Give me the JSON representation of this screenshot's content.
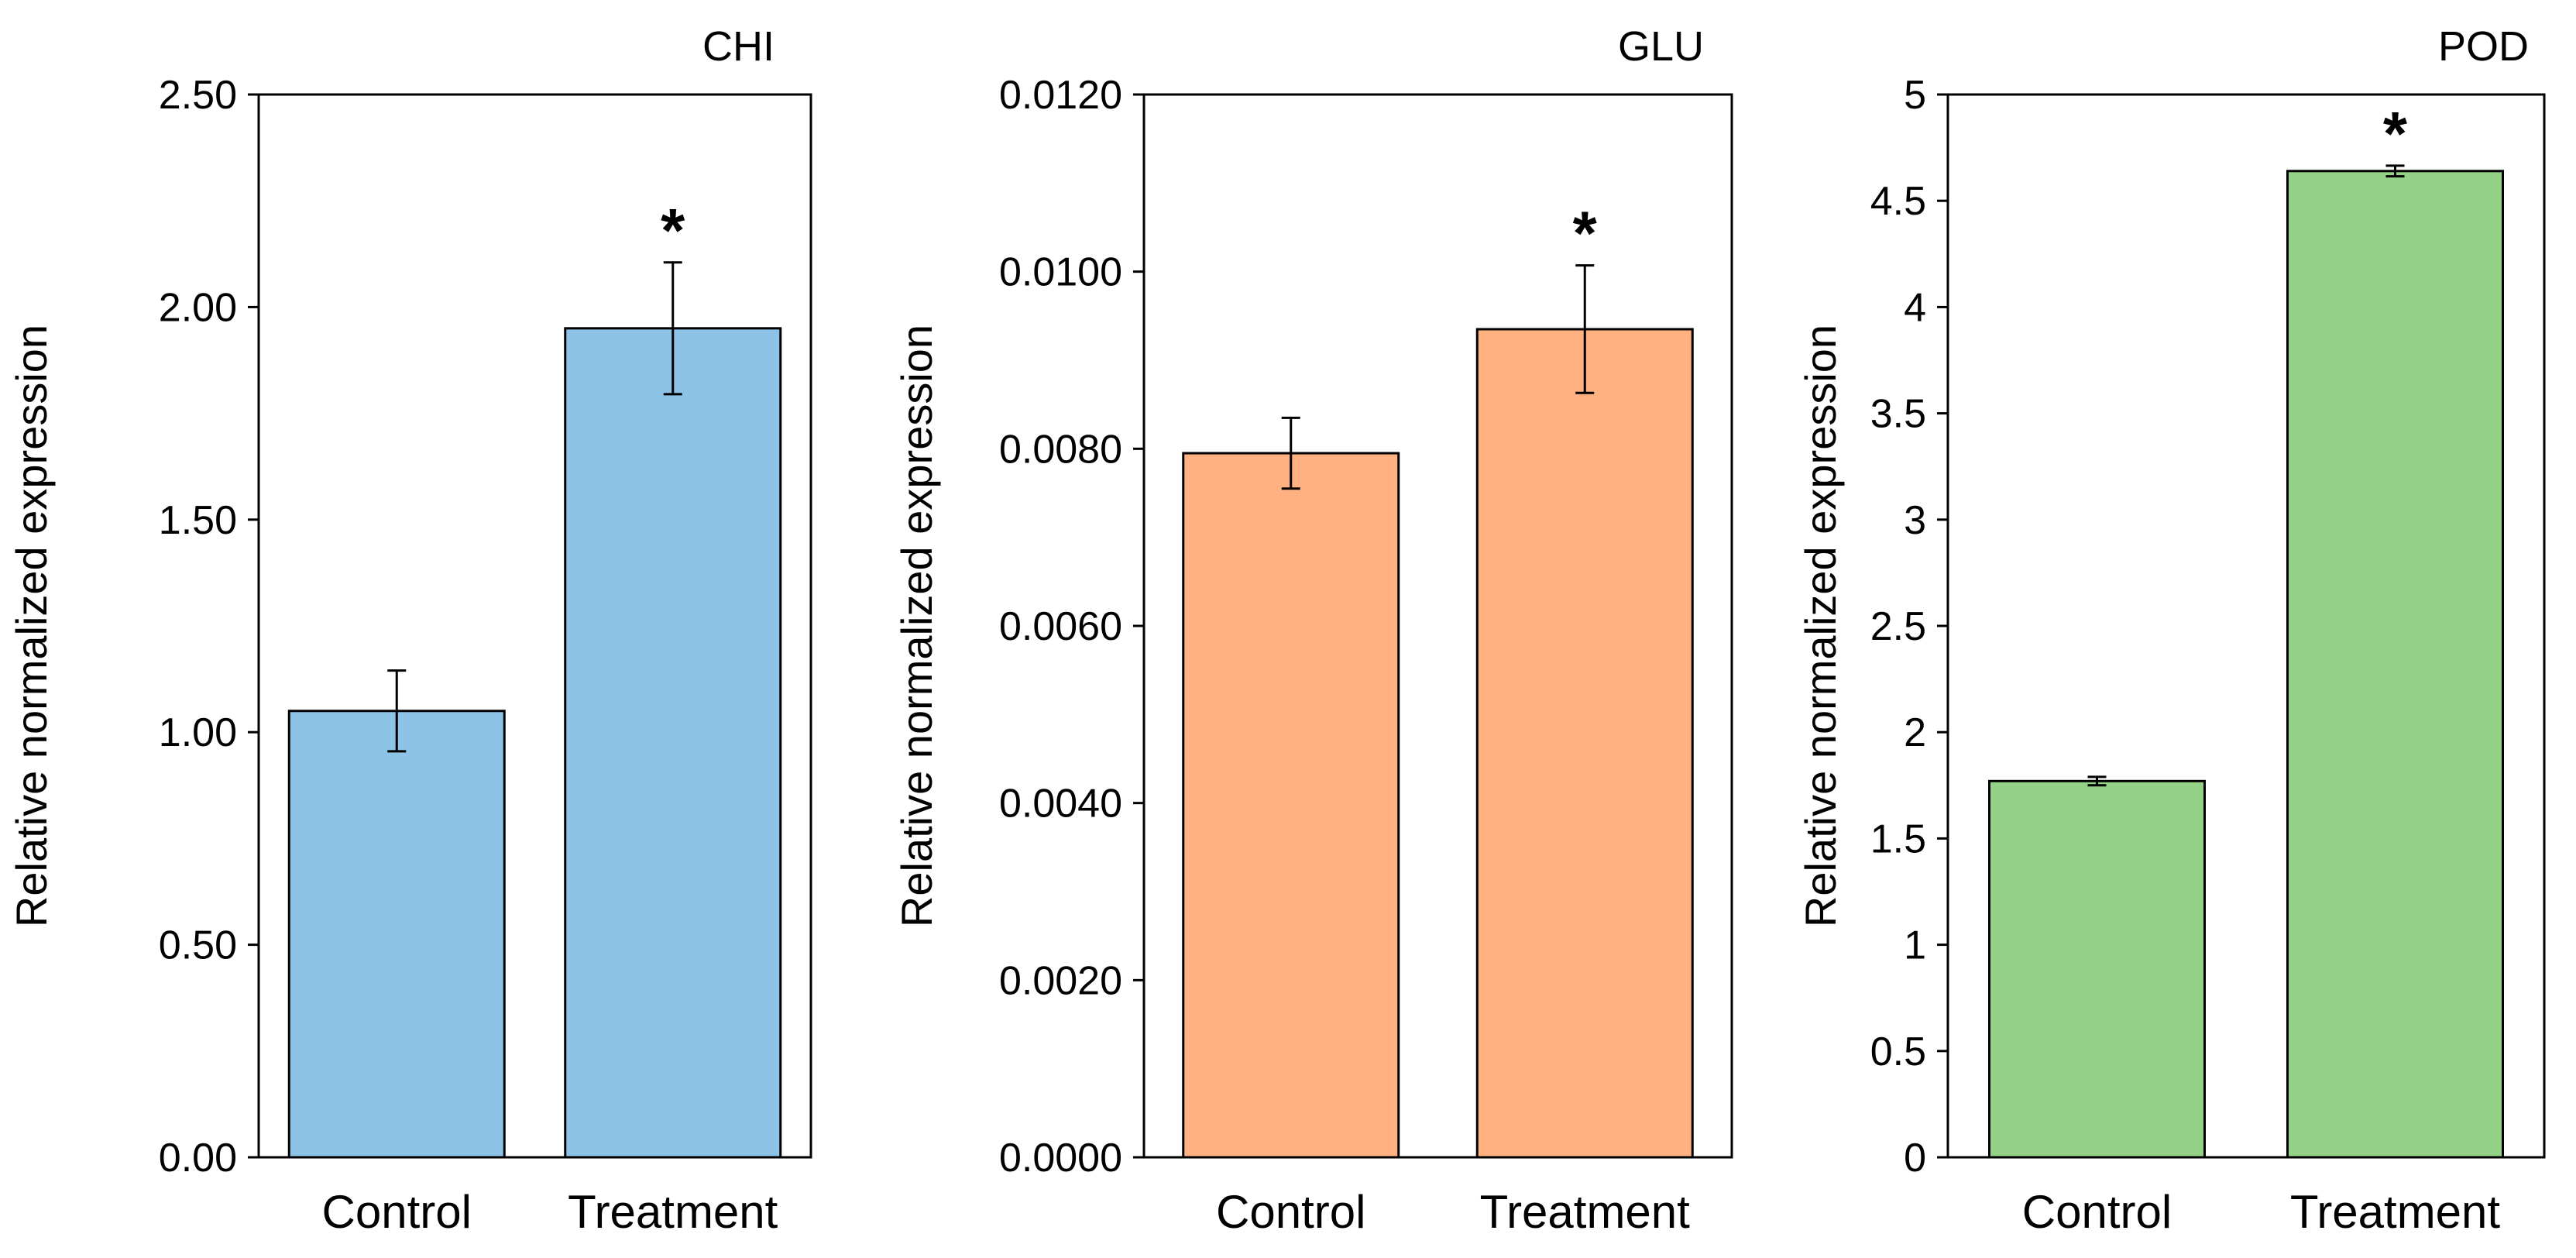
{
  "chart_data": [
    {
      "type": "bar",
      "title": "CHI",
      "ylabel": "Relative normalized expression",
      "xlabel": "",
      "categories": [
        "Control",
        "Treatment"
      ],
      "values": [
        1.05,
        1.95
      ],
      "errors": [
        0.095,
        0.155
      ],
      "significance": [
        "",
        "*"
      ],
      "ylim": [
        0,
        2.5
      ],
      "yticks": [
        0,
        0.5,
        1.0,
        1.5,
        2.0,
        2.5
      ],
      "ytick_labels": [
        "0.00",
        "0.50",
        "1.00",
        "1.50",
        "2.00",
        "2.50"
      ],
      "bar_color": "#8EC3E8",
      "grid": false
    },
    {
      "type": "bar",
      "title": "GLU",
      "ylabel": "Relative normalized expression",
      "xlabel": "",
      "categories": [
        "Control",
        "Treatment"
      ],
      "values": [
        0.00795,
        0.00935
      ],
      "errors": [
        0.0004,
        0.00072
      ],
      "significance": [
        "",
        "*"
      ],
      "ylim": [
        0,
        0.012
      ],
      "yticks": [
        0,
        0.002,
        0.004,
        0.006,
        0.008,
        0.01,
        0.012
      ],
      "ytick_labels": [
        "0.0000",
        "0.0020",
        "0.0040",
        "0.0060",
        "0.0080",
        "0.0100",
        "0.0120"
      ],
      "bar_color": "#FFB182",
      "grid": false
    },
    {
      "type": "bar",
      "title": "POD",
      "ylabel": "Relative normalized expression",
      "xlabel": "",
      "categories": [
        "Control",
        "Treatment"
      ],
      "values": [
        1.77,
        4.64
      ],
      "errors": [
        0.02,
        0.025
      ],
      "significance": [
        "",
        "*"
      ],
      "ylim": [
        0,
        5
      ],
      "yticks": [
        0,
        0.5,
        1,
        1.5,
        2,
        2.5,
        3,
        3.5,
        4,
        4.5,
        5
      ],
      "ytick_labels": [
        "0",
        "0.5",
        "1",
        "1.5",
        "2",
        "2.5",
        "3",
        "3.5",
        "4",
        "4.5",
        "5"
      ],
      "bar_color": "#94D287",
      "grid": false
    }
  ]
}
